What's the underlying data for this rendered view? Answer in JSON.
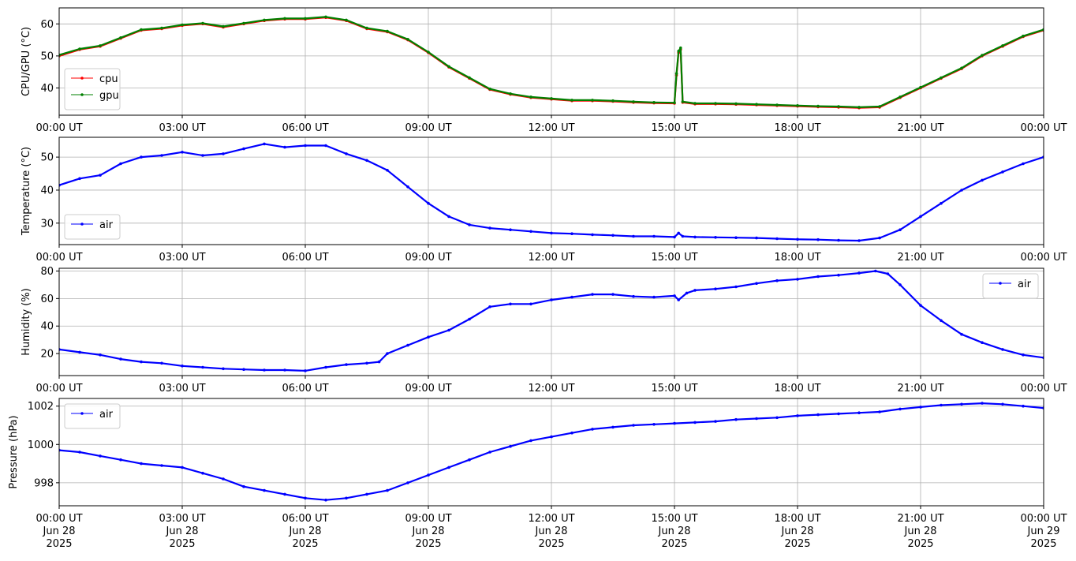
{
  "chart_data": [
    {
      "id": "cpu-gpu",
      "type": "line",
      "ylabel": "CPU/GPU (°C)",
      "ylim": [
        31.5,
        65
      ],
      "yticks": [
        40,
        50,
        60
      ],
      "grid": true,
      "legend": "lower-left",
      "x": [
        0,
        0.5,
        1,
        1.5,
        2,
        2.5,
        3,
        3.5,
        4,
        4.5,
        5,
        5.5,
        6,
        6.5,
        7,
        7.5,
        8,
        8.5,
        9,
        9.5,
        10,
        10.5,
        11,
        11.5,
        12,
        12.5,
        13,
        13.5,
        14,
        14.5,
        15,
        15.05,
        15.1,
        15.15,
        15.2,
        15.5,
        16,
        16.5,
        17,
        17.5,
        18,
        18.5,
        19,
        19.5,
        20,
        20.5,
        21,
        21.5,
        22,
        22.5,
        23,
        23.5,
        24
      ],
      "series": [
        {
          "name": "cpu",
          "color": "#ff0000",
          "values": [
            50,
            52,
            53,
            55.5,
            58,
            58.5,
            59.5,
            60,
            59,
            60,
            61,
            61.5,
            61.5,
            62,
            61,
            58.5,
            57.5,
            55,
            51,
            46.5,
            43,
            39.5,
            38,
            37,
            36.5,
            36,
            36,
            35.8,
            35.5,
            35.3,
            35.2,
            44,
            51,
            52,
            35.5,
            35,
            35,
            34.9,
            34.7,
            34.5,
            34.3,
            34.1,
            34,
            33.8,
            34,
            37,
            40,
            43,
            46,
            50,
            53,
            56,
            58
          ]
        },
        {
          "name": "gpu",
          "color": "#008000",
          "values": [
            50.3,
            52.2,
            53.2,
            55.7,
            58.2,
            58.7,
            59.7,
            60.2,
            59.2,
            60.2,
            61.2,
            61.7,
            61.7,
            62.2,
            61.2,
            58.7,
            57.7,
            55.2,
            51.2,
            46.7,
            43.2,
            39.7,
            38.2,
            37.2,
            36.7,
            36.2,
            36.2,
            36,
            35.7,
            35.5,
            35.4,
            44.5,
            51.5,
            52.5,
            35.7,
            35.2,
            35.2,
            35.1,
            34.9,
            34.7,
            34.5,
            34.3,
            34.2,
            34,
            34.2,
            37.2,
            40.2,
            43.2,
            46.2,
            50.2,
            53.2,
            56.2,
            58.2
          ]
        }
      ]
    },
    {
      "id": "air-temp",
      "type": "line",
      "ylabel": "Temperature (°C)",
      "ylim": [
        23.5,
        56
      ],
      "yticks": [
        30,
        40,
        50
      ],
      "grid": true,
      "legend": "lower-left",
      "x": [
        0,
        0.5,
        1,
        1.5,
        2,
        2.5,
        3,
        3.5,
        4,
        4.5,
        5,
        5.5,
        6,
        6.5,
        7,
        7.5,
        8,
        8.5,
        9,
        9.5,
        10,
        10.5,
        11,
        11.5,
        12,
        12.5,
        13,
        13.5,
        14,
        14.5,
        15,
        15.1,
        15.2,
        15.5,
        16,
        16.5,
        17,
        17.5,
        18,
        18.5,
        19,
        19.5,
        20,
        20.5,
        21,
        21.5,
        22,
        22.5,
        23,
        23.5,
        24
      ],
      "series": [
        {
          "name": "air",
          "color": "#0000ff",
          "values": [
            41.5,
            43.5,
            44.5,
            48,
            50,
            50.5,
            51.5,
            50.5,
            51,
            52.5,
            54,
            53,
            53.5,
            53.5,
            51,
            49,
            46,
            41,
            36,
            32,
            29.5,
            28.5,
            28,
            27.5,
            27,
            26.8,
            26.5,
            26.3,
            26,
            26,
            25.8,
            27,
            26,
            25.8,
            25.7,
            25.6,
            25.5,
            25.3,
            25.1,
            25,
            24.8,
            24.7,
            25.5,
            28,
            32,
            36,
            40,
            43,
            45.5,
            48,
            50
          ]
        }
      ]
    },
    {
      "id": "air-humidity",
      "type": "line",
      "ylabel": "Humidity (%)",
      "ylim": [
        4,
        82
      ],
      "yticks": [
        20,
        40,
        60,
        80
      ],
      "grid": true,
      "legend": "upper-right",
      "x": [
        0,
        0.5,
        1,
        1.5,
        2,
        2.5,
        3,
        3.5,
        4,
        4.5,
        5,
        5.5,
        6,
        6.5,
        7,
        7.5,
        7.8,
        8,
        8.5,
        9,
        9.5,
        10,
        10.5,
        11,
        11.5,
        12,
        12.5,
        13,
        13.5,
        14,
        14.5,
        15,
        15.1,
        15.3,
        15.5,
        16,
        16.5,
        17,
        17.5,
        18,
        18.5,
        19,
        19.5,
        19.9,
        20.2,
        20.5,
        21,
        21.5,
        22,
        22.5,
        23,
        23.5,
        24
      ],
      "series": [
        {
          "name": "air",
          "color": "#0000ff",
          "values": [
            23,
            21,
            19,
            16,
            14,
            13,
            11,
            10,
            9,
            8.5,
            8,
            8,
            7.5,
            10,
            12,
            13,
            14,
            20,
            26,
            32,
            37,
            45,
            54,
            56,
            56,
            59,
            61,
            63,
            63,
            61.5,
            61,
            62,
            59,
            64,
            66,
            67,
            68.5,
            71,
            73,
            74,
            76,
            77,
            78.5,
            80,
            78,
            70,
            55,
            44,
            34,
            28,
            23,
            19,
            17
          ]
        }
      ]
    },
    {
      "id": "air-pressure",
      "type": "line",
      "ylabel": "Pressure (hPa)",
      "ylim": [
        996.8,
        1002.4
      ],
      "yticks": [
        998,
        1000,
        1002
      ],
      "grid": true,
      "legend": "upper-left",
      "x": [
        0,
        0.5,
        1,
        1.5,
        2,
        2.5,
        3,
        3.5,
        4,
        4.5,
        5,
        5.5,
        6,
        6.5,
        7,
        7.5,
        8,
        8.5,
        9,
        9.5,
        10,
        10.5,
        11,
        11.5,
        12,
        12.5,
        13,
        13.5,
        14,
        14.5,
        15,
        15.5,
        16,
        16.5,
        17,
        17.5,
        18,
        18.5,
        19,
        19.5,
        20,
        20.5,
        21,
        21.5,
        22,
        22.5,
        23,
        23.5,
        24
      ],
      "series": [
        {
          "name": "air",
          "color": "#0000ff",
          "values": [
            999.7,
            999.6,
            999.4,
            999.2,
            999,
            998.9,
            998.8,
            998.5,
            998.2,
            997.8,
            997.6,
            997.4,
            997.2,
            997.1,
            997.2,
            997.4,
            997.6,
            998,
            998.4,
            998.8,
            999.2,
            999.6,
            999.9,
            1000.2,
            1000.4,
            1000.6,
            1000.8,
            1000.9,
            1001,
            1001.05,
            1001.1,
            1001.15,
            1001.2,
            1001.3,
            1001.35,
            1001.4,
            1001.5,
            1001.55,
            1001.6,
            1001.65,
            1001.7,
            1001.85,
            1001.95,
            1002.05,
            1002.1,
            1002.15,
            1002.1,
            1002.0,
            1001.9
          ]
        }
      ]
    }
  ],
  "x_axis": {
    "range": [
      0,
      24
    ],
    "ticks": [
      0,
      3,
      6,
      9,
      12,
      15,
      18,
      21,
      24
    ],
    "tick_labels_short": [
      "00:00 UT",
      "03:00 UT",
      "06:00 UT",
      "09:00 UT",
      "12:00 UT",
      "15:00 UT",
      "18:00 UT",
      "21:00 UT",
      "00:00 UT"
    ],
    "tick_labels_full": [
      [
        "00:00 UT",
        "Jun 28",
        "2025"
      ],
      [
        "03:00 UT",
        "Jun 28",
        "2025"
      ],
      [
        "06:00 UT",
        "Jun 28",
        "2025"
      ],
      [
        "09:00 UT",
        "Jun 28",
        "2025"
      ],
      [
        "12:00 UT",
        "Jun 28",
        "2025"
      ],
      [
        "15:00 UT",
        "Jun 28",
        "2025"
      ],
      [
        "18:00 UT",
        "Jun 28",
        "2025"
      ],
      [
        "21:00 UT",
        "Jun 28",
        "2025"
      ],
      [
        "00:00 UT",
        "Jun 29",
        "2025"
      ]
    ]
  }
}
